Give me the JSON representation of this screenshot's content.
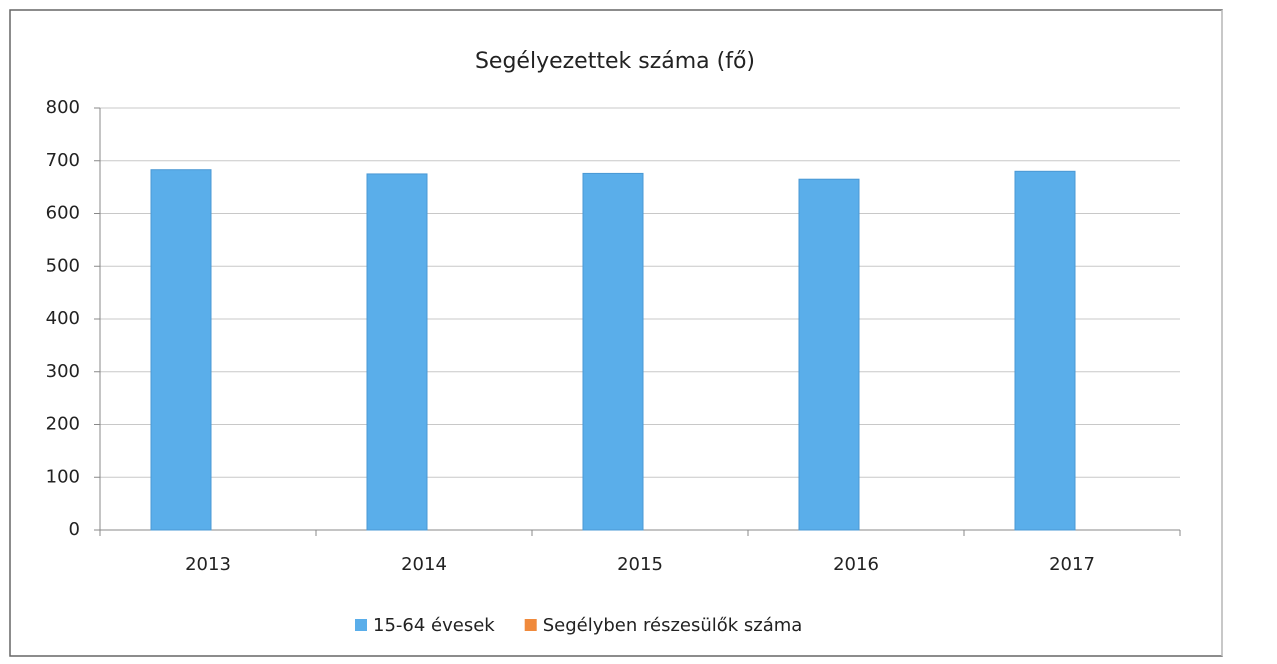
{
  "chart_data": {
    "type": "bar",
    "title": "Segélyezettek száma (fő)",
    "categories": [
      "2013",
      "2014",
      "2015",
      "2016",
      "2017"
    ],
    "series": [
      {
        "name": "15-64 évesek",
        "color": "#5aaeea",
        "values": [
          683,
          675,
          676,
          665,
          680
        ]
      },
      {
        "name": "Segélyben részesülők száma",
        "color": "#f08a3c",
        "values": [
          null,
          null,
          null,
          null,
          null
        ]
      }
    ],
    "ylim": [
      0,
      800
    ],
    "yticks": [
      0,
      100,
      200,
      300,
      400,
      500,
      600,
      700,
      800
    ],
    "grid": true,
    "legend": "bottom"
  }
}
